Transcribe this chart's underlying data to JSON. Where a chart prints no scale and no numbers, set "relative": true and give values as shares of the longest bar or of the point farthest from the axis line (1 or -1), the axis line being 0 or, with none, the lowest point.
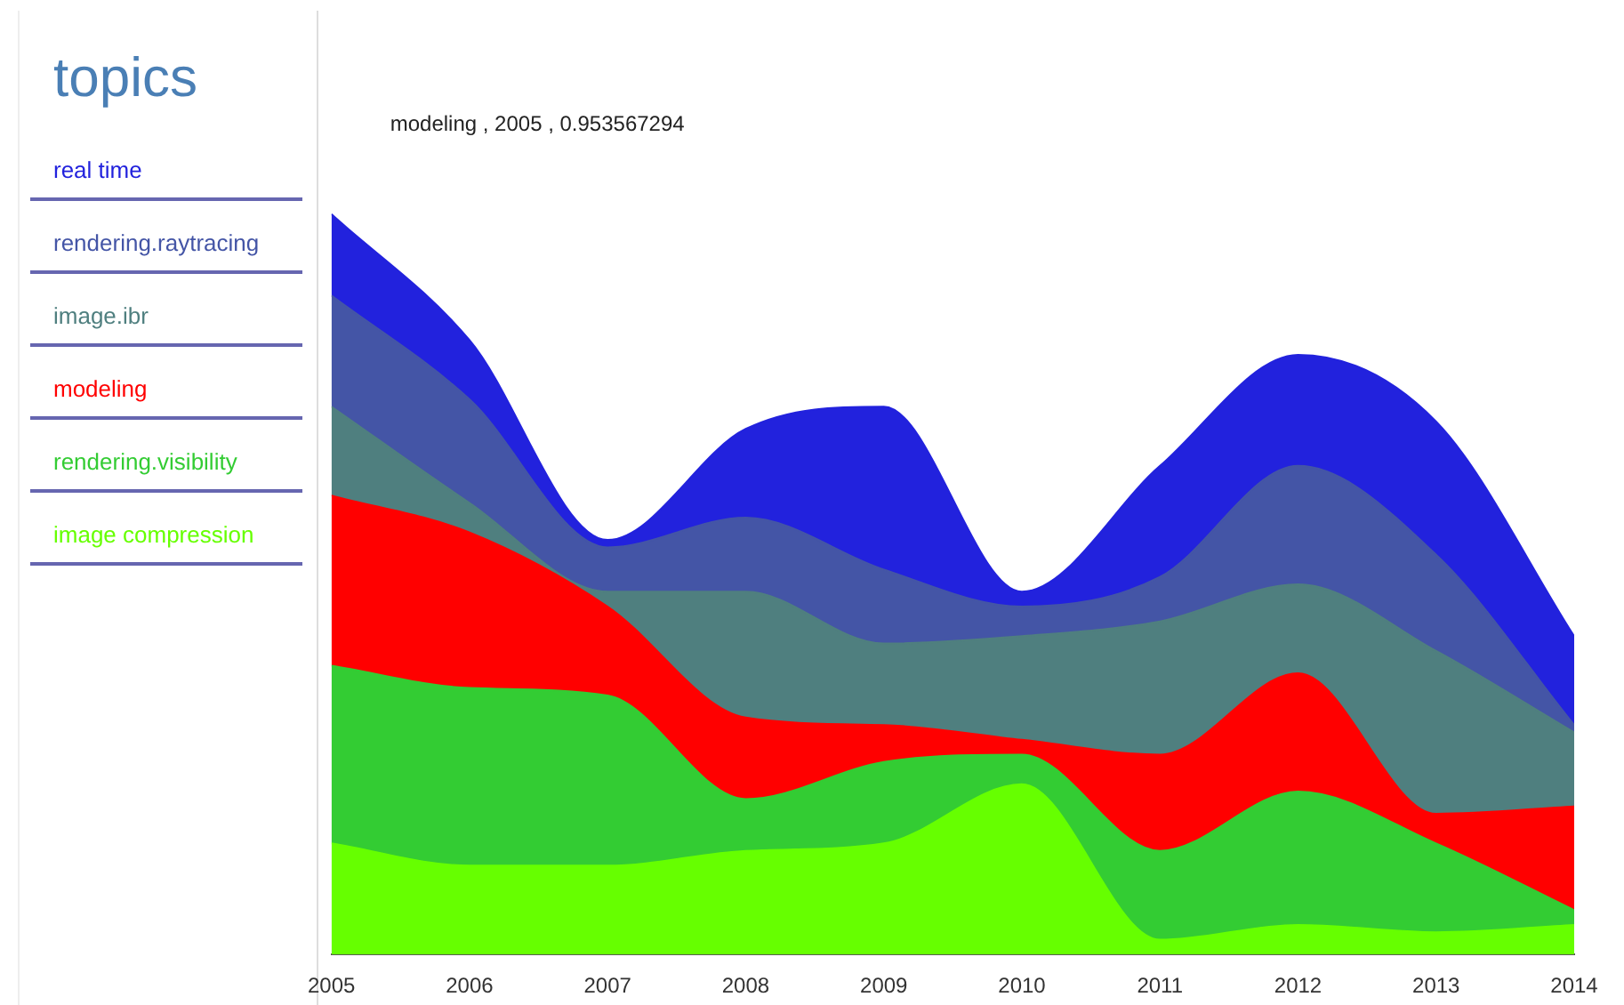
{
  "chart_data": {
    "type": "area",
    "stacked": true,
    "relative": true,
    "legend_title": "topics",
    "legend": "left",
    "grid": false,
    "marker": "none",
    "x": [
      2005,
      2006,
      2007,
      2008,
      2009,
      2010,
      2011,
      2012,
      2013,
      2014
    ],
    "xlim": [
      2005,
      2014
    ],
    "xticks": [
      2005,
      2006,
      2007,
      2008,
      2009,
      2010,
      2011,
      2012,
      2013,
      2014
    ],
    "annotations": [
      "modeling , 2005 , 0.953567294"
    ],
    "series": [
      {
        "name": "image compression",
        "color": "#66ff00",
        "values": [
          0.15,
          0.12,
          0.12,
          0.14,
          0.15,
          0.23,
          0.02,
          0.04,
          0.03,
          0.04
        ]
      },
      {
        "name": "rendering.visibility",
        "color": "#33cc33",
        "values": [
          0.24,
          0.24,
          0.23,
          0.07,
          0.11,
          0.04,
          0.12,
          0.18,
          0.12,
          0.02
        ]
      },
      {
        "name": "modeling",
        "color": "#ff0000",
        "values": [
          0.23,
          0.21,
          0.12,
          0.11,
          0.05,
          0.02,
          0.13,
          0.16,
          0.04,
          0.14
        ]
      },
      {
        "name": "image.ibr",
        "color": "#4f7f7f",
        "values": [
          0.12,
          0.04,
          0.02,
          0.17,
          0.11,
          0.14,
          0.18,
          0.12,
          0.22,
          0.1
        ]
      },
      {
        "name": "rendering.raytracing",
        "color": "#4455a6",
        "values": [
          0.15,
          0.14,
          0.06,
          0.1,
          0.1,
          0.04,
          0.06,
          0.16,
          0.13,
          0.01
        ]
      },
      {
        "name": "real time",
        "color": "#2222dd",
        "values": [
          0.11,
          0.08,
          0.01,
          0.12,
          0.22,
          0.02,
          0.15,
          0.15,
          0.18,
          0.12
        ]
      }
    ]
  }
}
